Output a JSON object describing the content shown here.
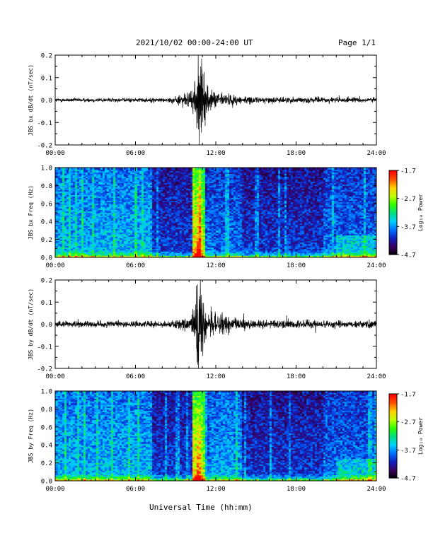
{
  "header": {
    "title": "2021/10/02  00:00-24:00 UT",
    "page": "Page 1/1"
  },
  "footer": {
    "xlabel": "Universal Time (hh:mm)"
  },
  "colorbar": {
    "label": "Log₁₀ Power",
    "ticks": [
      "-1.7",
      "-2.7",
      "-3.7",
      "-4.7"
    ],
    "range": [
      -4.7,
      -1.7
    ],
    "colors": [
      "#000000",
      "#3a0060",
      "#1020c0",
      "#0070ff",
      "#00d0ff",
      "#00e080",
      "#30ff00",
      "#c0ff00",
      "#ffd000",
      "#ff5000",
      "#ff0000"
    ]
  },
  "chart_data": [
    {
      "type": "line",
      "ylabel": "JBS bx dB/dt (nT/sec)",
      "ylim": [
        -0.2,
        0.2
      ],
      "yticks": [
        "0.2",
        "0.1",
        "0.0",
        "-0.1",
        "-0.2"
      ],
      "xlim": [
        "00:00",
        "24:00"
      ],
      "xticks": [
        "00:00",
        "06:00",
        "12:00",
        "18:00",
        "24:00"
      ],
      "series": [
        {
          "values_description_hours": [
            0,
            8.5,
            9.2,
            10.0,
            10.4,
            10.6,
            10.75,
            11.0,
            11.5,
            12.5,
            13.5,
            15,
            18,
            24
          ],
          "envelope": [
            0.008,
            0.009,
            0.02,
            0.03,
            0.06,
            0.2,
            0.2,
            0.12,
            0.04,
            0.03,
            0.02,
            0.012,
            0.012,
            0.01
          ]
        }
      ]
    },
    {
      "type": "heatmap",
      "ylabel": "JBS bx Freq (Hz)",
      "ylim": [
        0.0,
        1.0
      ],
      "yticks": [
        "1.0",
        "0.8",
        "0.6",
        "0.4",
        "0.2",
        "0.0"
      ],
      "xlim": [
        "00:00",
        "24:00"
      ],
      "xticks": [
        "00:00",
        "06:00",
        "12:00",
        "18:00",
        "24:00"
      ],
      "zlim": [
        -4.7,
        -1.7
      ]
    },
    {
      "type": "line",
      "ylabel": "JBS by dB/dt (nT/sec)",
      "ylim": [
        -0.2,
        0.2
      ],
      "yticks": [
        "0.2",
        "0.1",
        "0.0",
        "-0.1",
        "-0.2"
      ],
      "xlim": [
        "00:00",
        "24:00"
      ],
      "xticks": [
        "00:00",
        "06:00",
        "12:00",
        "18:00",
        "24:00"
      ],
      "series": [
        {
          "values_description_hours": [
            0,
            8.5,
            9.2,
            10.0,
            10.4,
            10.6,
            10.75,
            11.0,
            11.5,
            12.5,
            13.5,
            15,
            18,
            24
          ],
          "envelope": [
            0.012,
            0.013,
            0.02,
            0.03,
            0.06,
            0.2,
            0.2,
            0.12,
            0.06,
            0.04,
            0.025,
            0.018,
            0.018,
            0.015
          ]
        }
      ]
    },
    {
      "type": "heatmap",
      "ylabel": "JBS by Freq (Hz)",
      "ylim": [
        0.0,
        1.0
      ],
      "yticks": [
        "1.0",
        "0.8",
        "0.6",
        "0.4",
        "0.2",
        "0.0"
      ],
      "xlim": [
        "00:00",
        "24:00"
      ],
      "xticks": [
        "00:00",
        "06:00",
        "12:00",
        "18:00",
        "24:00"
      ],
      "zlim": [
        -4.7,
        -1.7
      ]
    }
  ]
}
